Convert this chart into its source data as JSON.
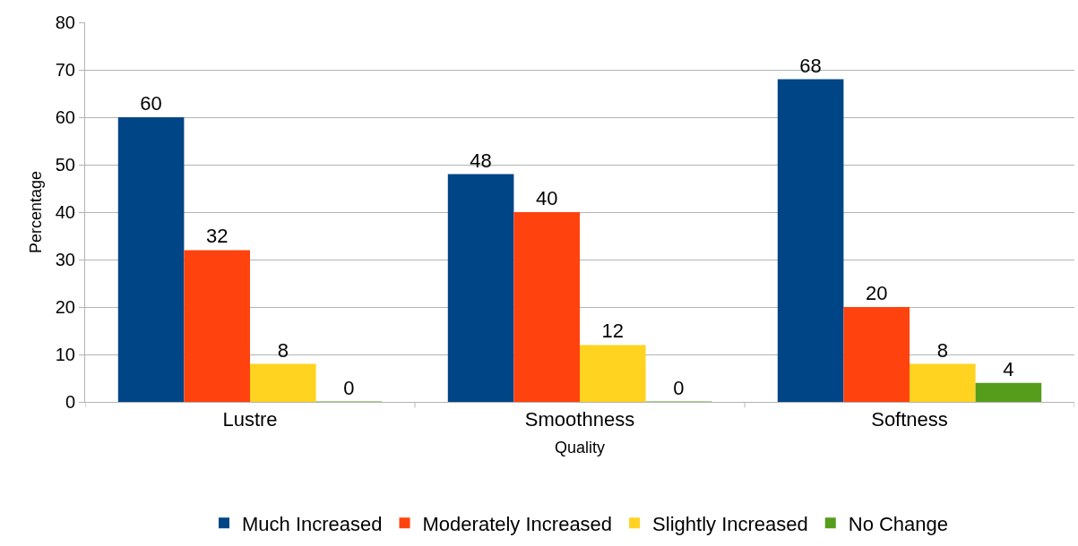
{
  "chart_data": {
    "type": "bar",
    "xlabel": "Quality",
    "ylabel": "Percentage",
    "categories": [
      "Lustre",
      "Smoothness",
      "Softness"
    ],
    "series": [
      {
        "name": "Much Increased",
        "color": "#004586",
        "values": [
          60,
          48,
          68
        ]
      },
      {
        "name": "Moderately Increased",
        "color": "#ff420e",
        "values": [
          32,
          40,
          20
        ]
      },
      {
        "name": "Slightly Increased",
        "color": "#ffd320",
        "values": [
          8,
          12,
          8
        ]
      },
      {
        "name": "No Change",
        "color": "#579d1c",
        "values": [
          0,
          0,
          4
        ]
      }
    ],
    "ylim": [
      0,
      80
    ],
    "yticks": [
      0,
      10,
      20,
      30,
      40,
      50,
      60,
      70,
      80
    ],
    "grid": "y",
    "legend": "bottom",
    "data_labels": true
  }
}
